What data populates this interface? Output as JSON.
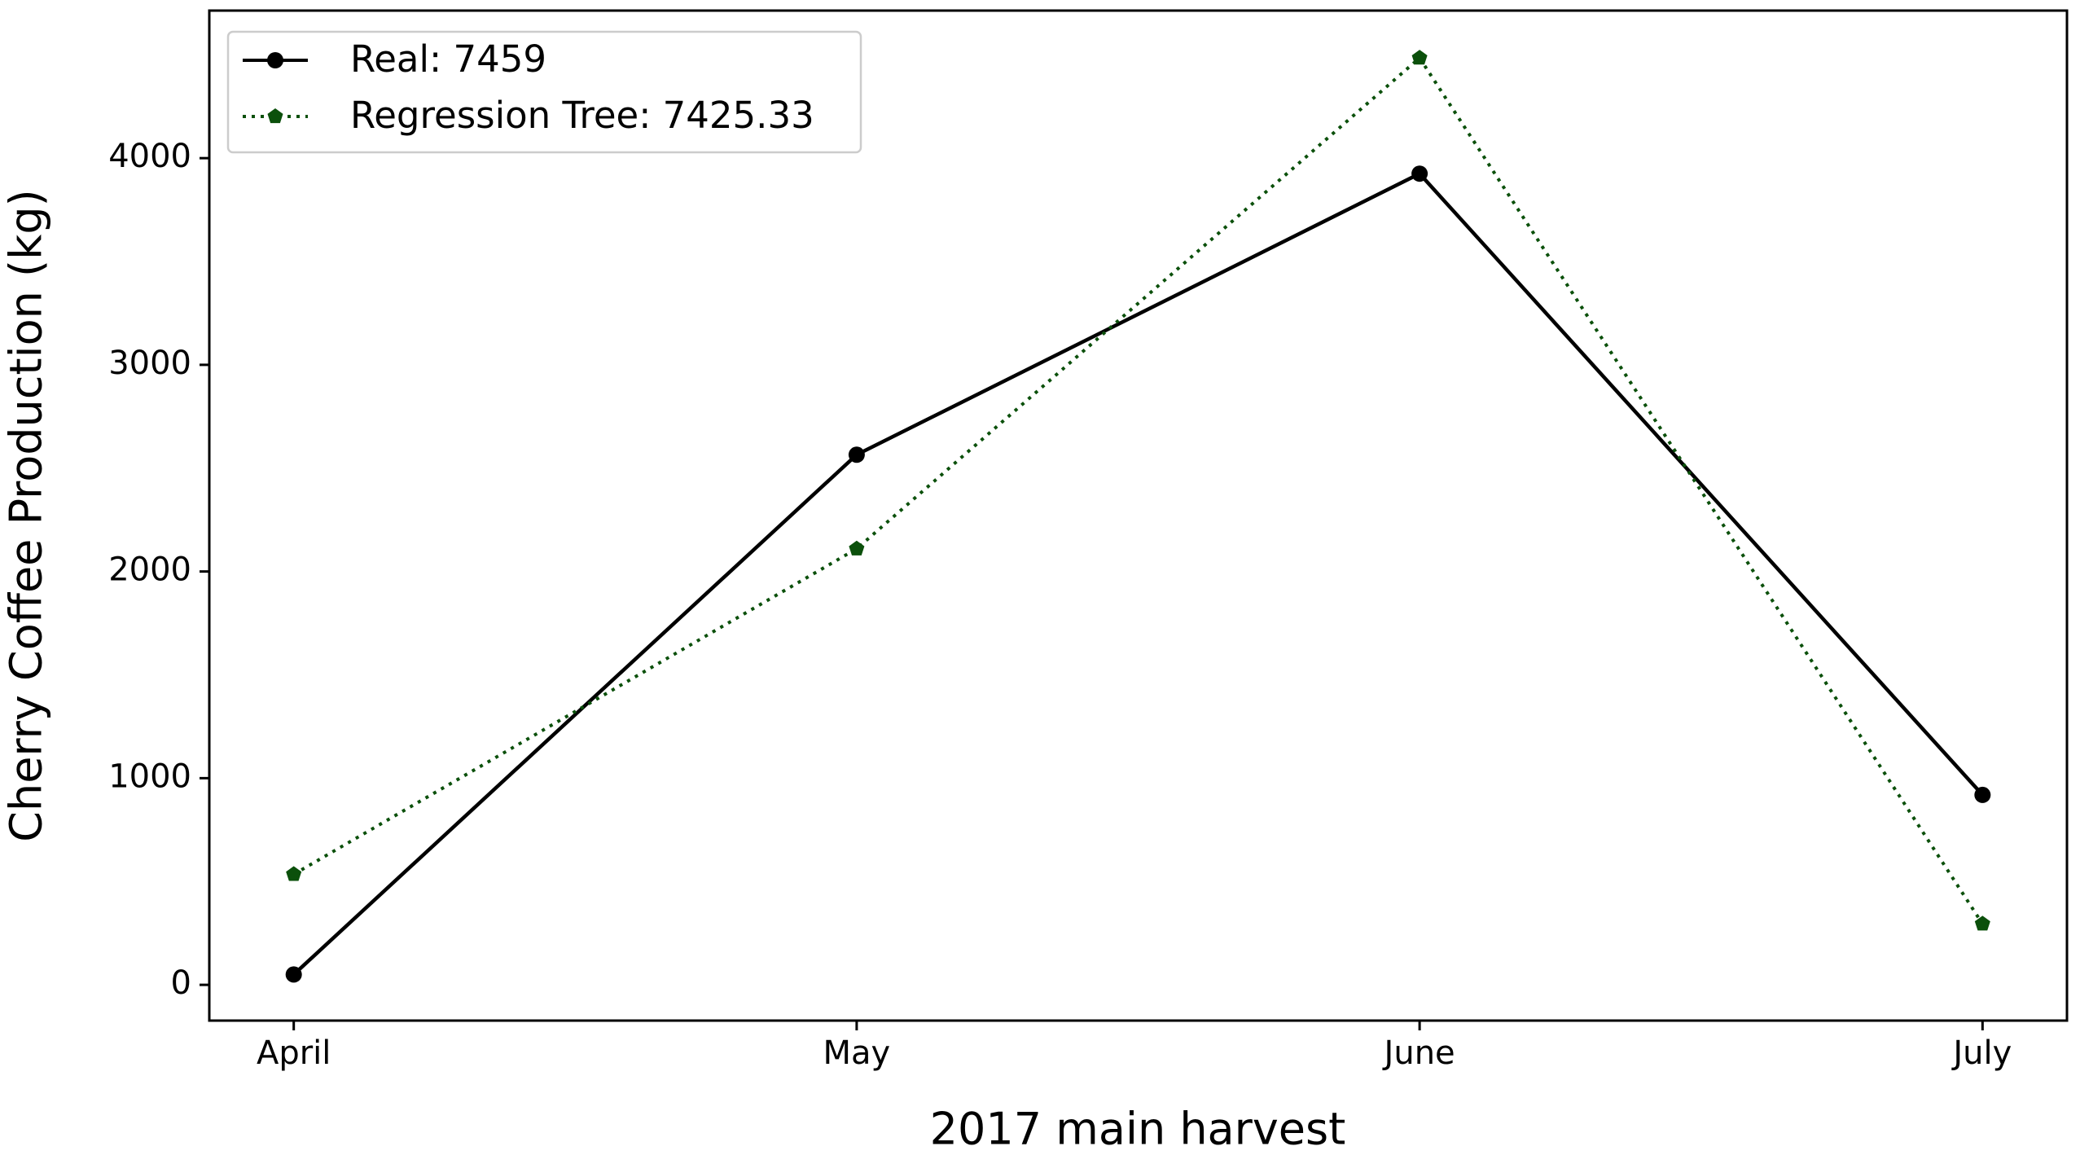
{
  "chart_data": {
    "type": "line",
    "x_label": "2017 main harvest",
    "y_label": "Cherry Coffee Production (kg)",
    "categories": [
      "April",
      "May",
      "June",
      "July"
    ],
    "series": [
      {
        "name": "Real: 7459",
        "color": "#000000",
        "linestyle": "solid",
        "marker": "circle",
        "values": [
          50,
          2565,
          3925,
          919
        ]
      },
      {
        "name": "Regression Tree: 7425.33",
        "color": "#0b500b",
        "linestyle": "dotted",
        "marker": "pentagon",
        "values": [
          535,
          2110,
          4485,
          295
        ]
      }
    ],
    "ylim": [
      -173,
      4714
    ],
    "yticks": [
      0,
      1000,
      2000,
      3000,
      4000
    ],
    "grid": false,
    "legend": "upper left"
  }
}
